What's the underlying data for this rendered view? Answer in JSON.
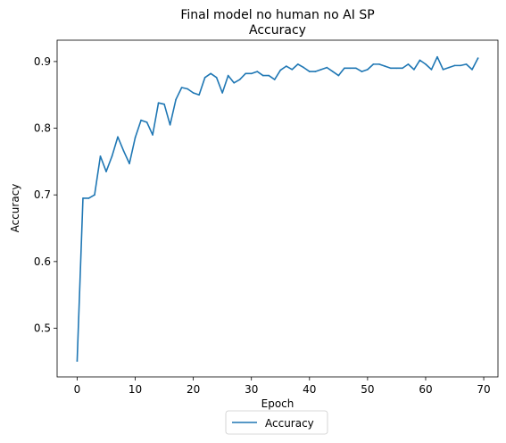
{
  "chart_data": {
    "type": "line",
    "title": "Final model no human no AI SP",
    "subtitle": "Accuracy",
    "xlabel": "Epoch",
    "ylabel": "Accuracy",
    "xlim": [
      -3.45,
      72.45
    ],
    "ylim": [
      0.427,
      0.932
    ],
    "xticks": [
      0,
      10,
      20,
      30,
      40,
      50,
      60,
      70
    ],
    "yticks": [
      0.5,
      0.6,
      0.7,
      0.8,
      0.9
    ],
    "grid": false,
    "legend": {
      "placement": "bottom-center"
    },
    "colors": {
      "series": "#1f77b4"
    },
    "series": [
      {
        "name": "Accuracy",
        "x": [
          0,
          1,
          2,
          3,
          4,
          5,
          6,
          7,
          8,
          9,
          10,
          11,
          12,
          13,
          14,
          15,
          16,
          17,
          18,
          19,
          20,
          21,
          22,
          23,
          24,
          25,
          26,
          27,
          28,
          29,
          30,
          31,
          32,
          33,
          34,
          35,
          36,
          37,
          38,
          39,
          40,
          41,
          42,
          43,
          44,
          45,
          46,
          47,
          48,
          49,
          50,
          51,
          52,
          53,
          54,
          55,
          56,
          57,
          58,
          59,
          60,
          61,
          62,
          63,
          64,
          65,
          66,
          67,
          68,
          69
        ],
        "values": [
          0.451,
          0.695,
          0.695,
          0.7,
          0.758,
          0.735,
          0.758,
          0.787,
          0.766,
          0.747,
          0.786,
          0.812,
          0.809,
          0.79,
          0.838,
          0.836,
          0.805,
          0.843,
          0.861,
          0.859,
          0.853,
          0.85,
          0.876,
          0.882,
          0.876,
          0.853,
          0.879,
          0.868,
          0.873,
          0.882,
          0.882,
          0.885,
          0.879,
          0.879,
          0.873,
          0.887,
          0.893,
          0.888,
          0.896,
          0.891,
          0.885,
          0.885,
          0.888,
          0.891,
          0.885,
          0.879,
          0.89,
          0.89,
          0.89,
          0.885,
          0.888,
          0.896,
          0.896,
          0.893,
          0.89,
          0.89,
          0.89,
          0.896,
          0.888,
          0.902,
          0.896,
          0.888,
          0.907,
          0.888,
          0.891,
          0.894,
          0.894,
          0.896,
          0.888,
          0.905
        ]
      }
    ]
  }
}
